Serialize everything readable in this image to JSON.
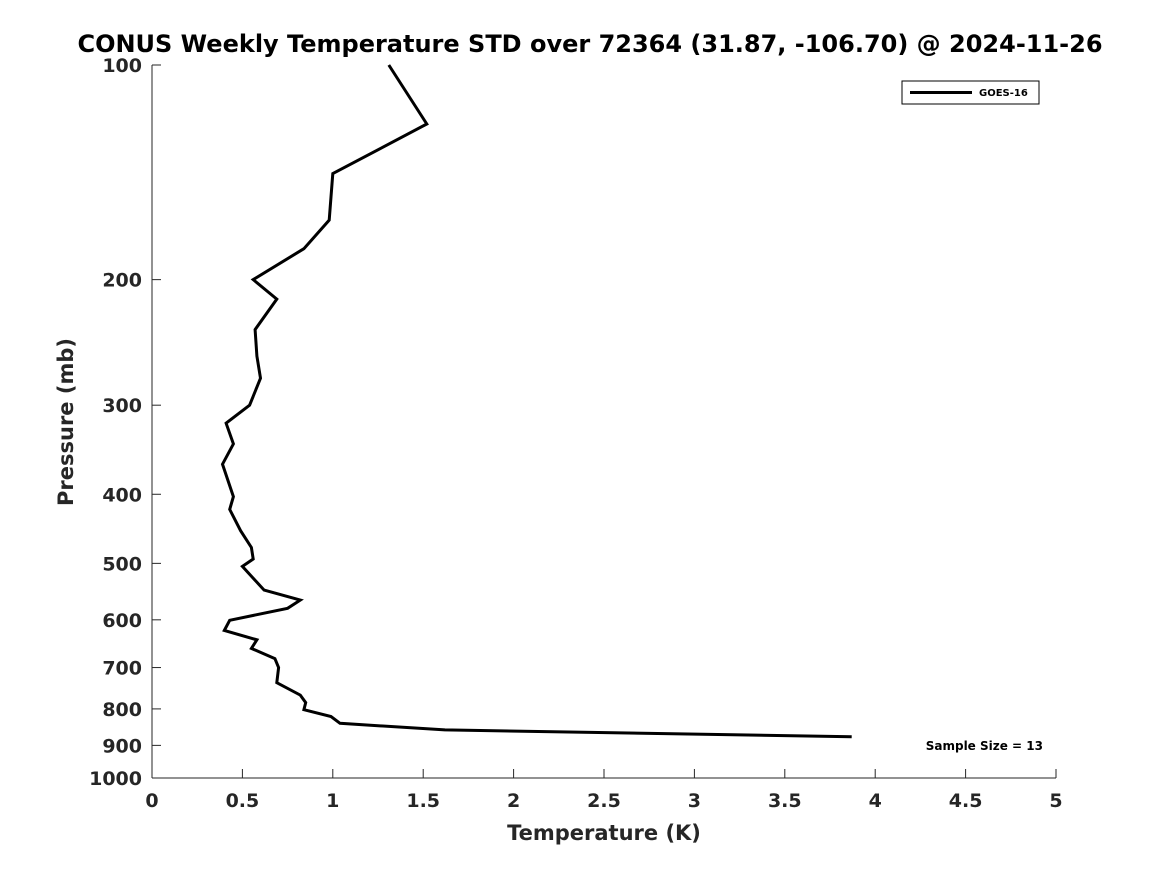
{
  "chart_data": {
    "type": "line",
    "title": "CONUS Weekly Temperature STD over 72364 (31.87, -106.70) @ 2024-11-26",
    "xlabel": "Temperature (K)",
    "ylabel": "Pressure (mb)",
    "xlim": [
      0,
      5
    ],
    "ylim": [
      100,
      1000
    ],
    "y_scale": "log",
    "y_reversed": true,
    "grid": false,
    "legend_position": "top-right",
    "x_ticks": [
      {
        "value": 0,
        "label": "0"
      },
      {
        "value": 0.5,
        "label": "0.5"
      },
      {
        "value": 1,
        "label": "1"
      },
      {
        "value": 1.5,
        "label": "1.5"
      },
      {
        "value": 2,
        "label": "2"
      },
      {
        "value": 2.5,
        "label": "2.5"
      },
      {
        "value": 3,
        "label": "3"
      },
      {
        "value": 3.5,
        "label": "3.5"
      },
      {
        "value": 4,
        "label": "4"
      },
      {
        "value": 4.5,
        "label": "4.5"
      },
      {
        "value": 5,
        "label": "5"
      }
    ],
    "y_ticks": [
      {
        "value": 100,
        "label": "100"
      },
      {
        "value": 200,
        "label": "200"
      },
      {
        "value": 300,
        "label": "300"
      },
      {
        "value": 400,
        "label": "400"
      },
      {
        "value": 500,
        "label": "500"
      },
      {
        "value": 600,
        "label": "600"
      },
      {
        "value": 700,
        "label": "700"
      },
      {
        "value": 800,
        "label": "800"
      },
      {
        "value": 900,
        "label": "900"
      },
      {
        "value": 1000,
        "label": "1000"
      }
    ],
    "series": [
      {
        "name": "GOES-16",
        "color": "#000000",
        "points": [
          {
            "x": 1.31,
            "p": 100
          },
          {
            "x": 1.52,
            "p": 121
          },
          {
            "x": 1.0,
            "p": 142
          },
          {
            "x": 0.98,
            "p": 165
          },
          {
            "x": 0.84,
            "p": 181
          },
          {
            "x": 0.56,
            "p": 200
          },
          {
            "x": 0.69,
            "p": 213
          },
          {
            "x": 0.57,
            "p": 235
          },
          {
            "x": 0.58,
            "p": 256
          },
          {
            "x": 0.6,
            "p": 275
          },
          {
            "x": 0.54,
            "p": 300
          },
          {
            "x": 0.41,
            "p": 318
          },
          {
            "x": 0.45,
            "p": 340
          },
          {
            "x": 0.39,
            "p": 363
          },
          {
            "x": 0.45,
            "p": 403
          },
          {
            "x": 0.43,
            "p": 420
          },
          {
            "x": 0.49,
            "p": 450
          },
          {
            "x": 0.55,
            "p": 475
          },
          {
            "x": 0.56,
            "p": 493
          },
          {
            "x": 0.5,
            "p": 505
          },
          {
            "x": 0.62,
            "p": 545
          },
          {
            "x": 0.82,
            "p": 563
          },
          {
            "x": 0.75,
            "p": 578
          },
          {
            "x": 0.43,
            "p": 601
          },
          {
            "x": 0.4,
            "p": 621
          },
          {
            "x": 0.58,
            "p": 640
          },
          {
            "x": 0.55,
            "p": 658
          },
          {
            "x": 0.68,
            "p": 680
          },
          {
            "x": 0.7,
            "p": 700
          },
          {
            "x": 0.69,
            "p": 735
          },
          {
            "x": 0.82,
            "p": 765
          },
          {
            "x": 0.85,
            "p": 784
          },
          {
            "x": 0.84,
            "p": 802
          },
          {
            "x": 0.99,
            "p": 820
          },
          {
            "x": 1.04,
            "p": 838
          },
          {
            "x": 1.62,
            "p": 856
          },
          {
            "x": 3.87,
            "p": 875
          }
        ]
      }
    ],
    "annotations": [
      {
        "text": "Sample Size = 13"
      }
    ]
  }
}
